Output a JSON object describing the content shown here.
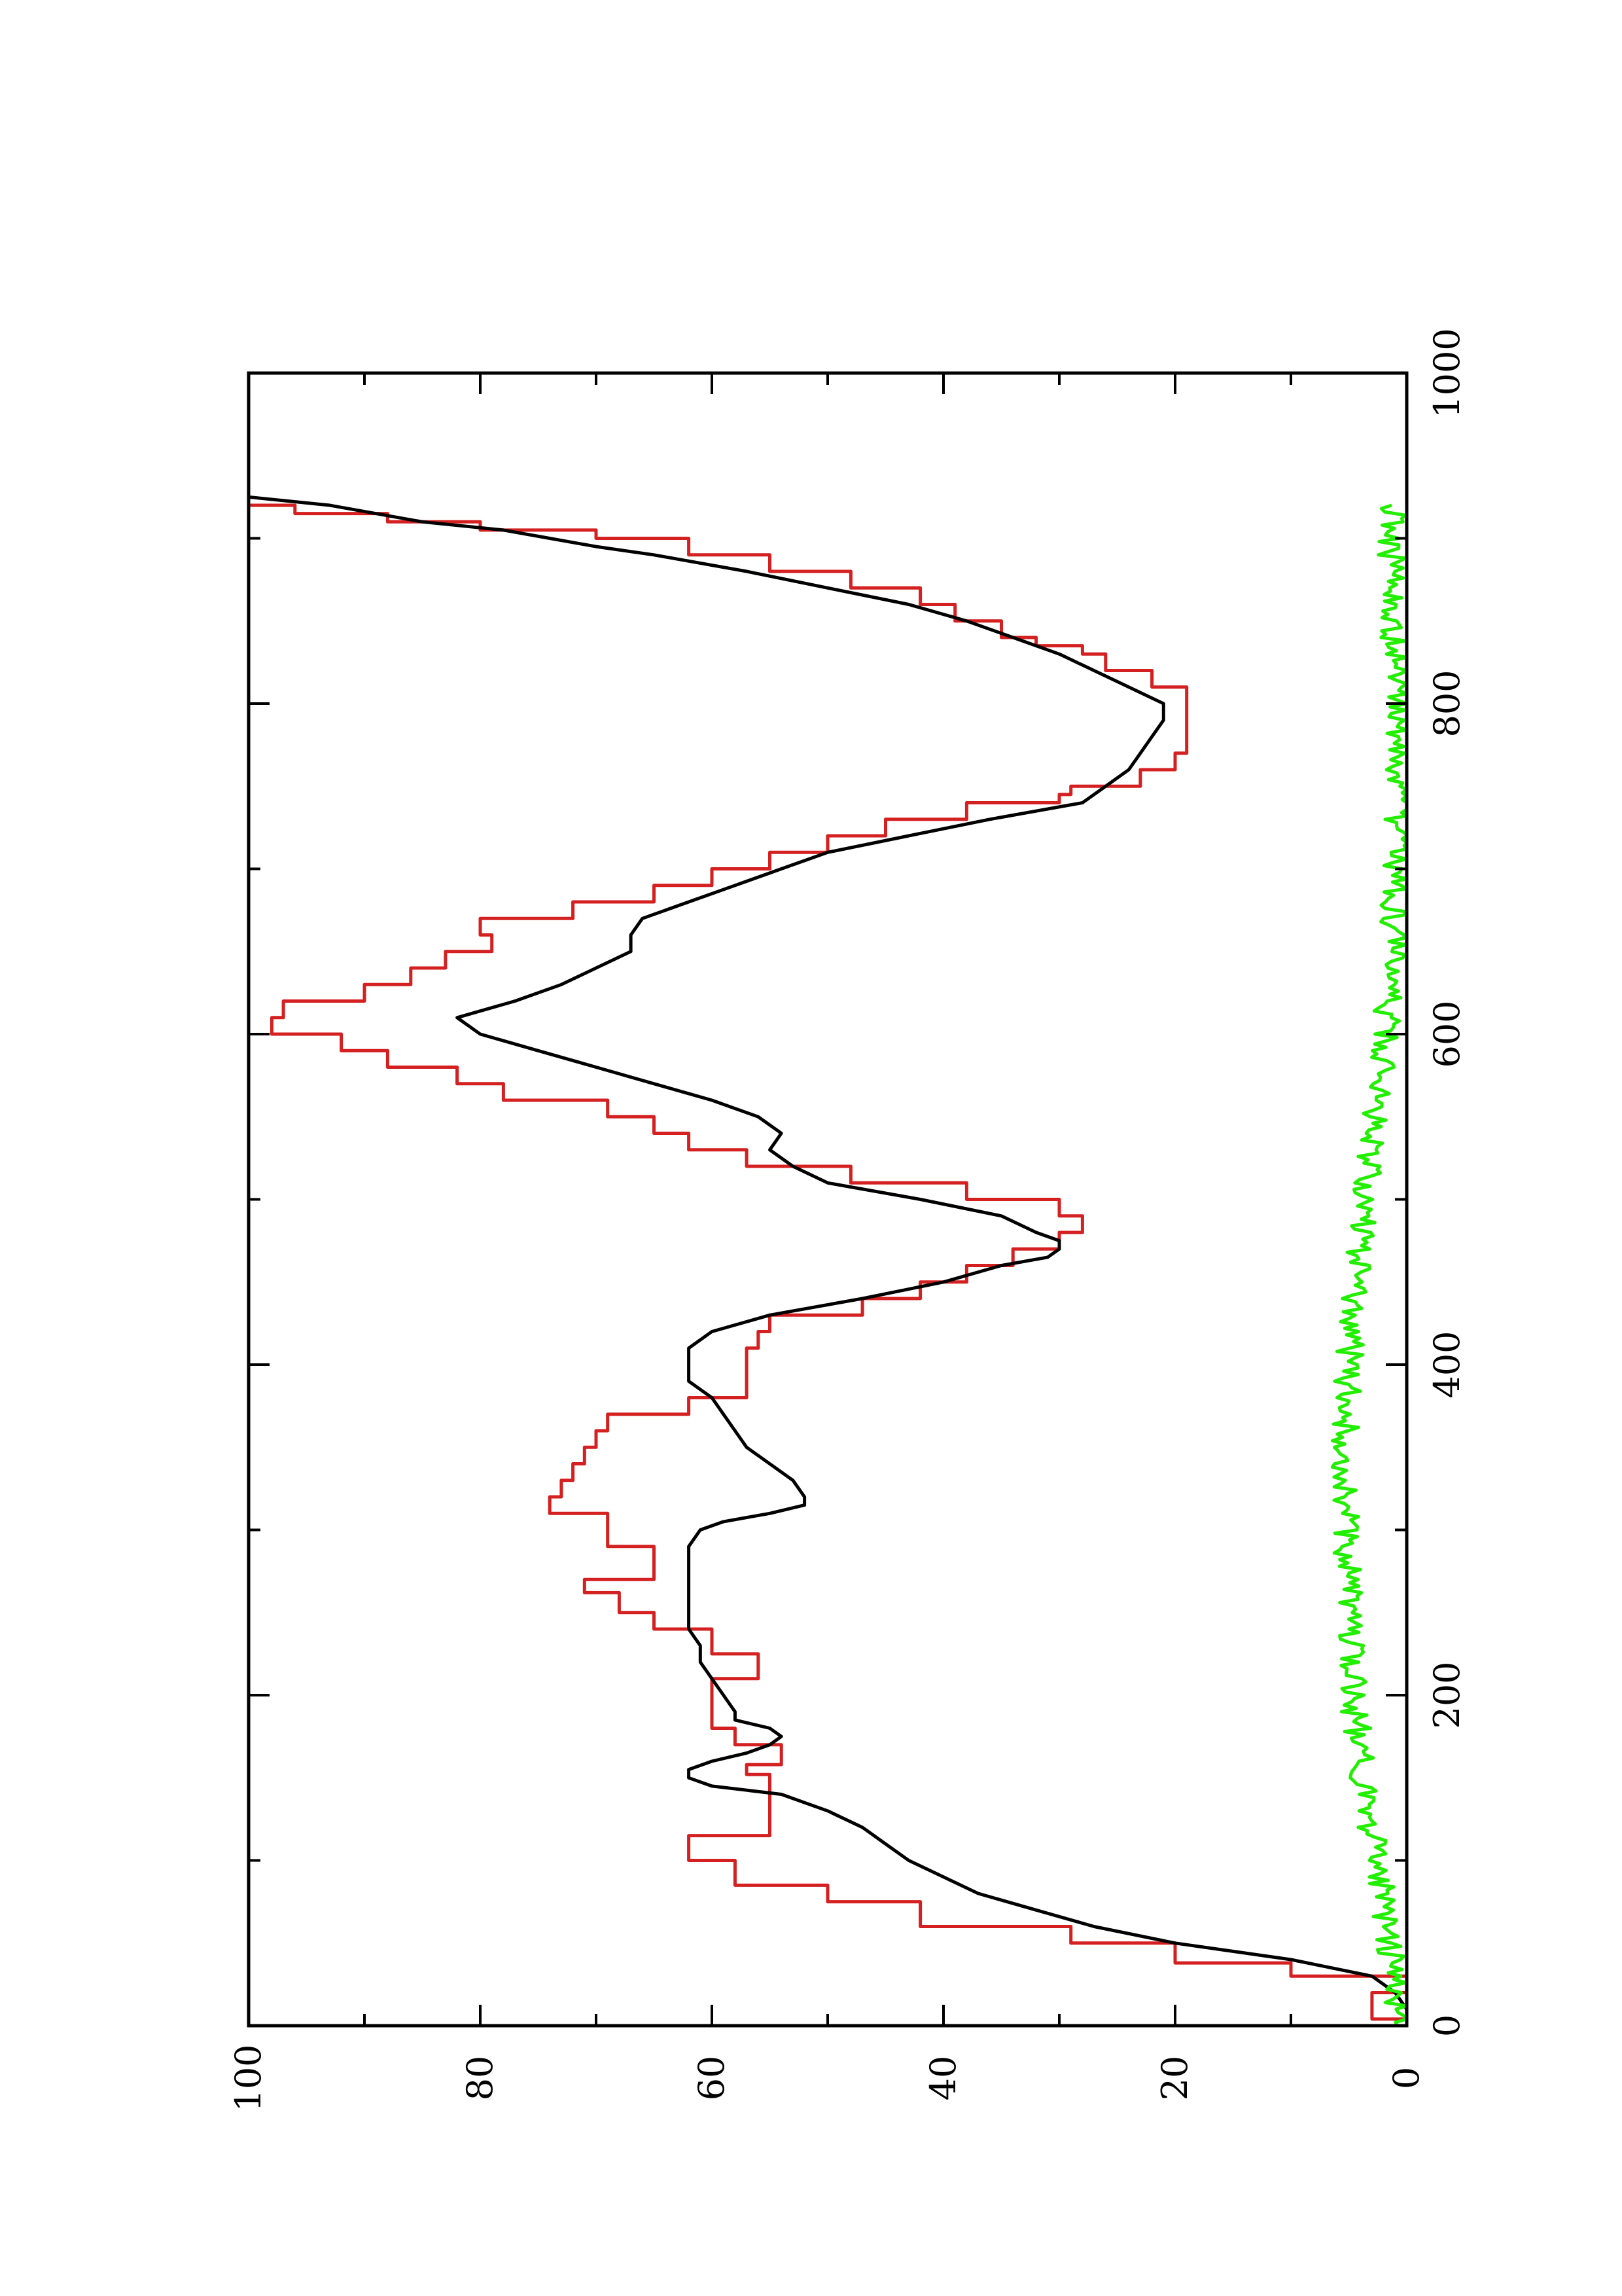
{
  "chart_data": {
    "type": "line",
    "title": "",
    "xlabel": "",
    "ylabel": "",
    "xlim": [
      0,
      1000
    ],
    "ylim": [
      0,
      100
    ],
    "x_ticks": [
      0,
      200,
      400,
      600,
      800,
      1000
    ],
    "x_tick_labels": [
      "0",
      "200",
      "400",
      "600",
      "800",
      "1000"
    ],
    "x_minor_ticks": [
      100,
      300,
      500,
      700,
      900
    ],
    "y_ticks": [
      0,
      20,
      40,
      60,
      80,
      100
    ],
    "y_tick_labels": [
      "0",
      "20",
      "40",
      "60",
      "80",
      "100"
    ],
    "y_minor_ticks": [
      10,
      30,
      50,
      70,
      90
    ],
    "grid": false,
    "legend": "none",
    "orientation": "rotated-90-ccw",
    "series": [
      {
        "color": "#d42020",
        "step": true,
        "points": [
          [
            0,
            0
          ],
          [
            4,
            0
          ],
          [
            4,
            3
          ],
          [
            20,
            3
          ],
          [
            20,
            0
          ],
          [
            24,
            0
          ],
          [
            30,
            10
          ],
          [
            38,
            20
          ],
          [
            50,
            29
          ],
          [
            55,
            29
          ],
          [
            60,
            42
          ],
          [
            75,
            50
          ],
          [
            85,
            58
          ],
          [
            100,
            62
          ],
          [
            115,
            55
          ],
          [
            140,
            55
          ],
          [
            150,
            55
          ],
          [
            152,
            57
          ],
          [
            158,
            54
          ],
          [
            165,
            54
          ],
          [
            170,
            58
          ],
          [
            180,
            60
          ],
          [
            200,
            60
          ],
          [
            210,
            56
          ],
          [
            225,
            60
          ],
          [
            240,
            65
          ],
          [
            250,
            68
          ],
          [
            262,
            71
          ],
          [
            270,
            65
          ],
          [
            290,
            69
          ],
          [
            310,
            74
          ],
          [
            320,
            73
          ],
          [
            330,
            72
          ],
          [
            340,
            71
          ],
          [
            350,
            70
          ],
          [
            360,
            69
          ],
          [
            370,
            62
          ],
          [
            380,
            57
          ],
          [
            400,
            57
          ],
          [
            410,
            56
          ],
          [
            420,
            55
          ],
          [
            430,
            47
          ],
          [
            440,
            42
          ],
          [
            450,
            38
          ],
          [
            460,
            34
          ],
          [
            470,
            30
          ],
          [
            480,
            28
          ],
          [
            490,
            30
          ],
          [
            500,
            38
          ],
          [
            510,
            48
          ],
          [
            520,
            57
          ],
          [
            530,
            62
          ],
          [
            540,
            65
          ],
          [
            550,
            69
          ],
          [
            560,
            78
          ],
          [
            570,
            82
          ],
          [
            580,
            88
          ],
          [
            590,
            92
          ],
          [
            600,
            98
          ],
          [
            610,
            97
          ],
          [
            620,
            90
          ],
          [
            630,
            86
          ],
          [
            640,
            83
          ],
          [
            650,
            79
          ],
          [
            660,
            80
          ],
          [
            670,
            72
          ],
          [
            680,
            65
          ],
          [
            690,
            60
          ],
          [
            700,
            55
          ],
          [
            710,
            50
          ],
          [
            720,
            45
          ],
          [
            730,
            38
          ],
          [
            740,
            30
          ],
          [
            745,
            29
          ],
          [
            750,
            23
          ],
          [
            760,
            20
          ],
          [
            770,
            19
          ],
          [
            780,
            19
          ],
          [
            790,
            19
          ],
          [
            800,
            19
          ],
          [
            810,
            22
          ],
          [
            820,
            26
          ],
          [
            825,
            26
          ],
          [
            830,
            28
          ],
          [
            835,
            32
          ],
          [
            840,
            35
          ],
          [
            850,
            39
          ],
          [
            860,
            42
          ],
          [
            870,
            48
          ],
          [
            880,
            55
          ],
          [
            890,
            62
          ],
          [
            900,
            70
          ],
          [
            905,
            80
          ],
          [
            910,
            88
          ],
          [
            915,
            96
          ],
          [
            920,
            100
          ],
          [
            925,
            100
          ]
        ]
      },
      {
        "color": "#000000",
        "step": false,
        "points": [
          [
            0,
            0
          ],
          [
            10,
            0
          ],
          [
            20,
            1
          ],
          [
            30,
            3
          ],
          [
            40,
            10
          ],
          [
            50,
            20
          ],
          [
            60,
            27
          ],
          [
            70,
            32
          ],
          [
            80,
            37
          ],
          [
            90,
            40
          ],
          [
            100,
            43
          ],
          [
            110,
            45
          ],
          [
            120,
            47
          ],
          [
            130,
            50
          ],
          [
            140,
            54
          ],
          [
            145,
            60
          ],
          [
            150,
            62
          ],
          [
            155,
            62
          ],
          [
            160,
            60
          ],
          [
            165,
            57
          ],
          [
            170,
            55
          ],
          [
            175,
            54
          ],
          [
            180,
            55
          ],
          [
            185,
            58
          ],
          [
            190,
            58
          ],
          [
            200,
            59
          ],
          [
            210,
            60
          ],
          [
            220,
            61
          ],
          [
            230,
            61
          ],
          [
            240,
            62
          ],
          [
            250,
            62
          ],
          [
            260,
            62
          ],
          [
            270,
            62
          ],
          [
            280,
            62
          ],
          [
            290,
            62
          ],
          [
            300,
            61
          ],
          [
            305,
            59
          ],
          [
            310,
            55
          ],
          [
            315,
            52
          ],
          [
            320,
            52
          ],
          [
            330,
            53
          ],
          [
            340,
            55
          ],
          [
            350,
            57
          ],
          [
            360,
            58
          ],
          [
            370,
            59
          ],
          [
            380,
            60
          ],
          [
            390,
            62
          ],
          [
            400,
            62
          ],
          [
            410,
            62
          ],
          [
            420,
            60
          ],
          [
            430,
            55
          ],
          [
            440,
            47
          ],
          [
            450,
            40
          ],
          [
            460,
            35
          ],
          [
            465,
            31
          ],
          [
            470,
            30
          ],
          [
            475,
            30
          ],
          [
            480,
            32
          ],
          [
            490,
            35
          ],
          [
            500,
            42
          ],
          [
            510,
            50
          ],
          [
            520,
            53
          ],
          [
            530,
            55
          ],
          [
            540,
            54
          ],
          [
            550,
            56
          ],
          [
            560,
            60
          ],
          [
            570,
            65
          ],
          [
            580,
            70
          ],
          [
            590,
            75
          ],
          [
            600,
            80
          ],
          [
            610,
            82
          ],
          [
            620,
            77
          ],
          [
            630,
            73
          ],
          [
            640,
            70
          ],
          [
            650,
            67
          ],
          [
            660,
            67
          ],
          [
            670,
            66
          ],
          [
            680,
            62
          ],
          [
            690,
            58
          ],
          [
            700,
            54
          ],
          [
            710,
            50
          ],
          [
            720,
            43
          ],
          [
            730,
            36
          ],
          [
            740,
            28
          ],
          [
            750,
            26
          ],
          [
            760,
            24
          ],
          [
            770,
            23
          ],
          [
            780,
            22
          ],
          [
            790,
            21
          ],
          [
            800,
            21
          ],
          [
            810,
            24
          ],
          [
            820,
            27
          ],
          [
            830,
            30
          ],
          [
            840,
            34
          ],
          [
            850,
            38
          ],
          [
            860,
            43
          ],
          [
            870,
            50
          ],
          [
            880,
            57
          ],
          [
            890,
            65
          ],
          [
            895,
            70
          ],
          [
            900,
            74
          ],
          [
            905,
            78
          ],
          [
            910,
            85
          ],
          [
            920,
            93
          ],
          [
            925,
            100
          ]
        ]
      },
      {
        "color": "#22ee00",
        "step": false,
        "noise": true,
        "points": [
          [
            0,
            0.8
          ],
          [
            20,
            1.0
          ],
          [
            40,
            1.3
          ],
          [
            60,
            1.6
          ],
          [
            80,
            2.0
          ],
          [
            100,
            2.6
          ],
          [
            120,
            3.1
          ],
          [
            140,
            3.5
          ],
          [
            160,
            4.0
          ],
          [
            180,
            4.3
          ],
          [
            200,
            4.6
          ],
          [
            220,
            4.8
          ],
          [
            240,
            5.0
          ],
          [
            260,
            5.1
          ],
          [
            280,
            5.2
          ],
          [
            300,
            5.3
          ],
          [
            320,
            5.3
          ],
          [
            340,
            5.3
          ],
          [
            360,
            5.2
          ],
          [
            380,
            5.1
          ],
          [
            400,
            5.0
          ],
          [
            420,
            4.8
          ],
          [
            440,
            4.6
          ],
          [
            460,
            4.3
          ],
          [
            480,
            4.0
          ],
          [
            500,
            3.6
          ],
          [
            520,
            3.2
          ],
          [
            540,
            2.8
          ],
          [
            560,
            2.5
          ],
          [
            580,
            2.1
          ],
          [
            600,
            1.8
          ],
          [
            620,
            1.6
          ],
          [
            640,
            1.4
          ],
          [
            660,
            1.2
          ],
          [
            680,
            1.0
          ],
          [
            700,
            0.9
          ],
          [
            720,
            0.8
          ],
          [
            740,
            0.8
          ],
          [
            760,
            0.8
          ],
          [
            780,
            0.8
          ],
          [
            800,
            0.9
          ],
          [
            820,
            1.0
          ],
          [
            840,
            1.1
          ],
          [
            860,
            1.2
          ],
          [
            880,
            1.3
          ],
          [
            900,
            1.3
          ],
          [
            920,
            1.3
          ]
        ]
      }
    ]
  }
}
